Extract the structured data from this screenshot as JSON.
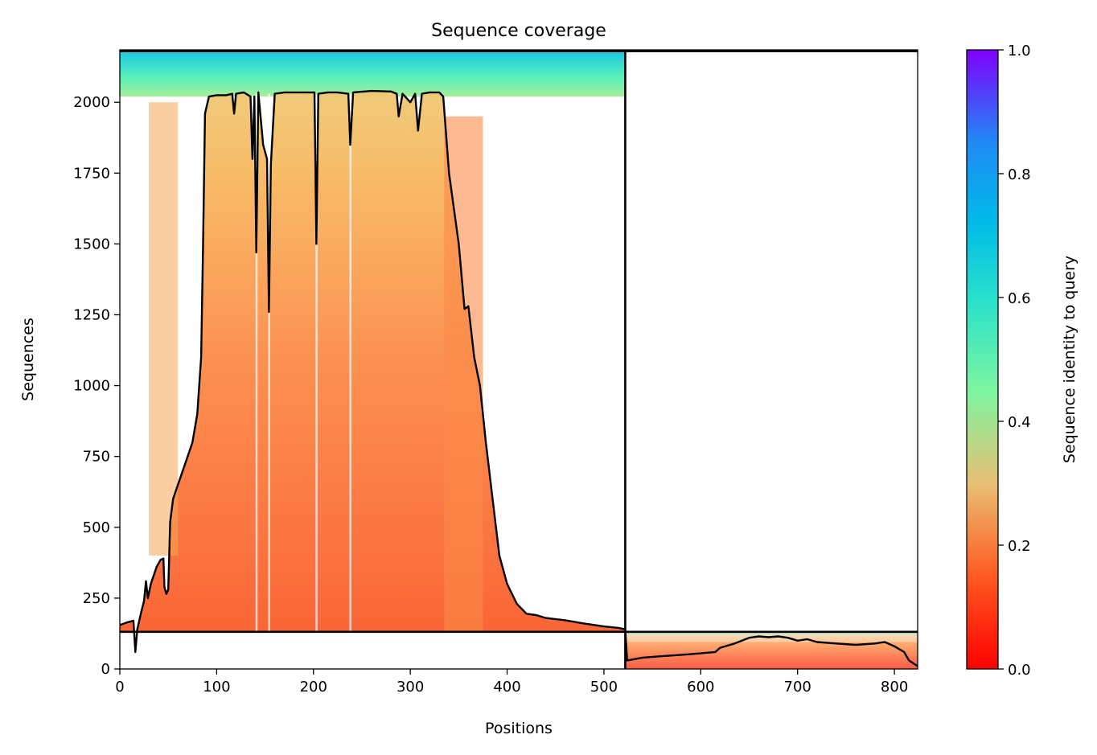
{
  "chart_data": {
    "type": "heatmap",
    "title": "Sequence coverage",
    "xlabel": "Positions",
    "ylabel": "Sequences",
    "xlim": [
      0,
      824
    ],
    "ylim": [
      0,
      2185
    ],
    "x_ticks": [
      0,
      100,
      200,
      300,
      400,
      500,
      600,
      700,
      800
    ],
    "y_ticks": [
      0,
      250,
      500,
      750,
      1000,
      1250,
      1500,
      1750,
      2000
    ],
    "grid": false,
    "colorbar": {
      "label": "Sequence identity to query",
      "colormap": "rainbow_r",
      "range": [
        0.0,
        1.0
      ],
      "ticks": [
        0.0,
        0.2,
        0.4,
        0.6,
        0.8,
        1.0
      ],
      "tick_labels": [
        "0.0",
        "0.2",
        "0.4",
        "0.6",
        "0.8",
        "1.0"
      ]
    },
    "chain_boundary_x": 522,
    "chain_boundary_y": 131,
    "series": [
      {
        "kind": "coverage_line",
        "points": [
          [
            0,
            155
          ],
          [
            8,
            165
          ],
          [
            14,
            170
          ],
          [
            16,
            60
          ],
          [
            18,
            140
          ],
          [
            22,
            200
          ],
          [
            25,
            240
          ],
          [
            27,
            310
          ],
          [
            29,
            250
          ],
          [
            32,
            300
          ],
          [
            35,
            330
          ],
          [
            38,
            360
          ],
          [
            42,
            385
          ],
          [
            45,
            390
          ],
          [
            46,
            290
          ],
          [
            48,
            265
          ],
          [
            50,
            280
          ],
          [
            52,
            520
          ],
          [
            55,
            600
          ],
          [
            60,
            650
          ],
          [
            65,
            700
          ],
          [
            70,
            750
          ],
          [
            75,
            800
          ],
          [
            80,
            900
          ],
          [
            84,
            1100
          ],
          [
            86,
            1500
          ],
          [
            88,
            1960
          ],
          [
            92,
            2020
          ],
          [
            100,
            2025
          ],
          [
            110,
            2025
          ],
          [
            116,
            2030
          ],
          [
            118,
            1960
          ],
          [
            120,
            2030
          ],
          [
            128,
            2035
          ],
          [
            135,
            2020
          ],
          [
            137,
            1800
          ],
          [
            139,
            2020
          ],
          [
            141,
            1470
          ],
          [
            143,
            2035
          ],
          [
            148,
            1850
          ],
          [
            152,
            1800
          ],
          [
            154,
            1260
          ],
          [
            156,
            1780
          ],
          [
            160,
            2030
          ],
          [
            170,
            2035
          ],
          [
            180,
            2035
          ],
          [
            190,
            2035
          ],
          [
            201,
            2035
          ],
          [
            203,
            1500
          ],
          [
            205,
            2030
          ],
          [
            215,
            2035
          ],
          [
            225,
            2035
          ],
          [
            236,
            2030
          ],
          [
            238,
            1850
          ],
          [
            241,
            2035
          ],
          [
            260,
            2040
          ],
          [
            280,
            2038
          ],
          [
            286,
            2030
          ],
          [
            288,
            1950
          ],
          [
            292,
            2030
          ],
          [
            300,
            2000
          ],
          [
            305,
            2030
          ],
          [
            308,
            1900
          ],
          [
            312,
            2030
          ],
          [
            320,
            2035
          ],
          [
            330,
            2035
          ],
          [
            334,
            2020
          ],
          [
            340,
            1750
          ],
          [
            350,
            1500
          ],
          [
            356,
            1270
          ],
          [
            360,
            1280
          ],
          [
            366,
            1100
          ],
          [
            372,
            1000
          ],
          [
            378,
            800
          ],
          [
            385,
            600
          ],
          [
            392,
            400
          ],
          [
            400,
            300
          ],
          [
            410,
            230
          ],
          [
            420,
            195
          ],
          [
            430,
            190
          ],
          [
            440,
            180
          ],
          [
            460,
            172
          ],
          [
            480,
            160
          ],
          [
            500,
            150
          ],
          [
            515,
            145
          ],
          [
            522,
            140
          ],
          [
            524,
            30
          ],
          [
            540,
            40
          ],
          [
            560,
            45
          ],
          [
            580,
            50
          ],
          [
            600,
            55
          ],
          [
            615,
            60
          ],
          [
            620,
            75
          ],
          [
            635,
            90
          ],
          [
            650,
            110
          ],
          [
            660,
            115
          ],
          [
            670,
            112
          ],
          [
            680,
            115
          ],
          [
            690,
            110
          ],
          [
            700,
            100
          ],
          [
            710,
            105
          ],
          [
            720,
            95
          ],
          [
            740,
            90
          ],
          [
            760,
            85
          ],
          [
            780,
            90
          ],
          [
            790,
            95
          ],
          [
            800,
            80
          ],
          [
            810,
            60
          ],
          [
            815,
            30
          ],
          [
            824,
            10
          ]
        ]
      }
    ]
  }
}
